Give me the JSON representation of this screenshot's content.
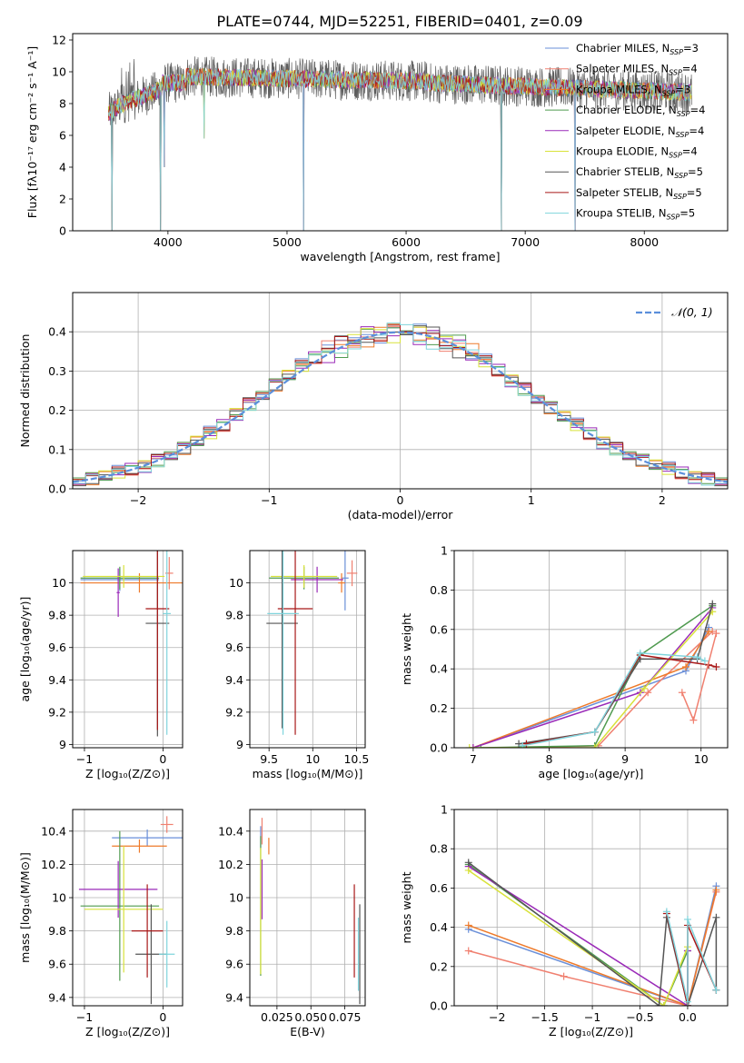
{
  "figure_title": "PLATE=0744, MJD=52251, FIBERID=0401, z=0.09",
  "colors": {
    "Chabrier MILES": "#6a8fd8",
    "Salpeter MILES": "#f08070",
    "Kroupa MILES": "#ee7a2a",
    "Chabrier ELODIE": "#4f9a4f",
    "Salpeter ELODIE": "#9a2ab8",
    "Kroupa ELODIE": "#d8e23a",
    "Chabrier STELIB": "#555555",
    "Salpeter STELIB": "#a81818",
    "Kroupa STELIB": "#7fd4dc",
    "gaussian": "#5b8fdb"
  },
  "legend_entries": [
    {
      "model": "Chabrier MILES",
      "n": "3"
    },
    {
      "model": "Salpeter MILES",
      "n": "4"
    },
    {
      "model": "Kroupa MILES",
      "n": "3"
    },
    {
      "model": "Chabrier ELODIE",
      "n": "4"
    },
    {
      "model": "Salpeter ELODIE",
      "n": "4"
    },
    {
      "model": "Kroupa ELODIE",
      "n": "4"
    },
    {
      "model": "Chabrier STELIB",
      "n": "5"
    },
    {
      "model": "Salpeter STELIB",
      "n": "5"
    },
    {
      "model": "Kroupa STELIB",
      "n": "5"
    }
  ],
  "chart_data": [
    {
      "id": "spectrum",
      "type": "line",
      "xlabel": "wavelength [Angstrom, rest frame]",
      "ylabel": "Flux [fλ10⁻¹⁷ erg cm⁻² s⁻¹ A⁻¹]",
      "xlim": [
        3200,
        8700
      ],
      "ylim": [
        0,
        12.4
      ],
      "xticks": [
        4000,
        5000,
        6000,
        7000,
        8000
      ],
      "yticks": [
        0,
        2,
        4,
        6,
        8,
        10,
        12
      ],
      "grid": false,
      "legend_position": "right",
      "data_range": [
        3500,
        8400
      ],
      "absorption_dips": [
        {
          "x": 3530,
          "y": 0
        },
        {
          "x": 3935,
          "y": 0
        },
        {
          "x": 3970,
          "y": 4
        },
        {
          "x": 4305,
          "y": 5.8
        },
        {
          "x": 5140,
          "y": 0
        },
        {
          "x": 6800,
          "y": 0
        },
        {
          "x": 7420,
          "y": 0
        }
      ]
    },
    {
      "id": "residuals",
      "type": "line",
      "xlabel": "(data-model)/error",
      "ylabel": "Normed distribution",
      "xlim": [
        -2.5,
        2.5
      ],
      "ylim": [
        0,
        0.5
      ],
      "xticks": [
        -2,
        -1,
        0,
        1,
        2
      ],
      "yticks": [
        0.0,
        0.1,
        0.2,
        0.3,
        0.4
      ],
      "grid": true,
      "legend_position": "top-right",
      "gaussian_label": "𝒩(0, 1)",
      "bin_width": 0.1,
      "series": [
        {
          "name": "Chabrier MILES",
          "offsets": [
            0,
            0.012,
            -0.008,
            0.02,
            -0.012,
            0.01,
            0.004
          ]
        },
        {
          "name": "Salpeter MILES",
          "offsets": [
            0.006,
            -0.01,
            0.015,
            -0.006,
            0.008,
            -0.014,
            0.01
          ]
        },
        {
          "name": "Kroupa MILES",
          "offsets": [
            -0.008,
            0.01,
            0.004,
            -0.015,
            0.012,
            0.006,
            -0.01
          ]
        },
        {
          "name": "Chabrier ELODIE",
          "offsets": [
            0.01,
            -0.004,
            -0.012,
            0.008,
            0.016,
            -0.01,
            0.002
          ]
        },
        {
          "name": "Salpeter ELODIE",
          "offsets": [
            -0.004,
            0.016,
            -0.018,
            0.01,
            -0.008,
            0.012,
            -0.006
          ]
        },
        {
          "name": "Kroupa ELODIE",
          "offsets": [
            0.014,
            -0.012,
            0.008,
            0.012,
            -0.016,
            0.004,
            0.01
          ]
        },
        {
          "name": "Chabrier STELIB",
          "offsets": [
            -0.012,
            0.004,
            0.012,
            -0.01,
            0.006,
            0.016,
            -0.012
          ]
        },
        {
          "name": "Salpeter STELIB",
          "offsets": [
            0.004,
            0.008,
            -0.006,
            0.016,
            -0.012,
            -0.008,
            0.014
          ]
        },
        {
          "name": "Kroupa STELIB",
          "offsets": [
            -0.016,
            -0.006,
            0.01,
            -0.004,
            0.01,
            0.008,
            -0.016
          ]
        }
      ]
    },
    {
      "id": "age-vs-Z",
      "type": "scatter",
      "xlabel": "Z [log₁₀(Z/Z⊙)]",
      "ylabel": "age  [log₁₀(age/yr)]",
      "xlim": [
        -1.15,
        0.25
      ],
      "ylim": [
        8.98,
        10.2
      ],
      "xticks": [
        -1,
        0
      ],
      "yticks": [
        9.0,
        9.2,
        9.4,
        9.6,
        9.8,
        10.0
      ],
      "grid": true,
      "points": [
        {
          "s": "Chabrier MILES",
          "x": -0.55,
          "y": 10.02,
          "xerr": 0.5,
          "yerr": 0.07
        },
        {
          "s": "Salpeter MILES",
          "x": 0.08,
          "y": 10.06,
          "xerr": 0.05,
          "yerr": 0.1
        },
        {
          "s": "Kroupa MILES",
          "x": -0.3,
          "y": 10.0,
          "xerr": 0.75,
          "yerr": 0.06
        },
        {
          "s": "Chabrier ELODIE",
          "x": -0.55,
          "y": 10.03,
          "xerr": 0.5,
          "yerr": 0.07
        },
        {
          "s": "Salpeter ELODIE",
          "x": -0.57,
          "y": 9.94,
          "xerr": 0.02,
          "yerr": 0.15
        },
        {
          "s": "Kroupa ELODIE",
          "x": -0.5,
          "y": 10.04,
          "xerr": 0.52,
          "yerr": 0.07
        },
        {
          "s": "Chabrier STELIB",
          "x": -0.07,
          "y": 9.75,
          "xerr": 0.15,
          "yerr": 0.7
        },
        {
          "s": "Salpeter STELIB",
          "x": -0.07,
          "y": 9.84,
          "xerr": 0.15,
          "yerr": 0.75
        },
        {
          "s": "Kroupa STELIB",
          "x": 0.05,
          "y": 9.81,
          "xerr": 0.05,
          "yerr": 0.75
        }
      ]
    },
    {
      "id": "age-vs-mass",
      "type": "scatter",
      "xlabel": "mass [log₁₀(M/M⊙)]",
      "ylabel": "",
      "xlim": [
        9.28,
        10.6
      ],
      "ylim": [
        8.98,
        10.2
      ],
      "xticks": [
        9.5,
        10.0,
        10.5
      ],
      "yticks": [
        9.0,
        9.2,
        9.4,
        9.6,
        9.8,
        10.0
      ],
      "grid": true,
      "points": [
        {
          "s": "Chabrier MILES",
          "x": 10.37,
          "y": 10.03,
          "xerr": 0.04,
          "yerr": 0.2
        },
        {
          "s": "Salpeter MILES",
          "x": 10.45,
          "y": 10.06,
          "xerr": 0.06,
          "yerr": 0.08
        },
        {
          "s": "Kroupa MILES",
          "x": 10.33,
          "y": 10.0,
          "xerr": 0.04,
          "yerr": 0.06
        },
        {
          "s": "Chabrier ELODIE",
          "x": 9.9,
          "y": 10.03,
          "xerr": 0.4,
          "yerr": 0.07
        },
        {
          "s": "Salpeter ELODIE",
          "x": 10.05,
          "y": 10.02,
          "xerr": 0.3,
          "yerr": 0.08
        },
        {
          "s": "Kroupa ELODIE",
          "x": 9.9,
          "y": 10.04,
          "xerr": 0.38,
          "yerr": 0.07
        },
        {
          "s": "Chabrier STELIB",
          "x": 9.65,
          "y": 9.75,
          "xerr": 0.18,
          "yerr": 0.65
        },
        {
          "s": "Salpeter STELIB",
          "x": 9.8,
          "y": 9.84,
          "xerr": 0.2,
          "yerr": 0.78
        },
        {
          "s": "Kroupa STELIB",
          "x": 9.66,
          "y": 9.81,
          "xerr": 0.18,
          "yerr": 0.75
        }
      ]
    },
    {
      "id": "massweight-vs-age",
      "type": "line",
      "xlabel": "age  [log₁₀(age/yr)]",
      "ylabel": "mass weight",
      "xlim": [
        6.75,
        10.35
      ],
      "ylim": [
        0,
        1.0
      ],
      "xticks": [
        7,
        8,
        9,
        10
      ],
      "yticks": [
        0.0,
        0.2,
        0.4,
        0.6,
        0.8,
        1.0
      ],
      "grid": true,
      "series": [
        {
          "name": "Chabrier MILES",
          "points": [
            [
              7.0,
              0.0
            ],
            [
              9.8,
              0.39
            ],
            [
              10.1,
              0.61
            ]
          ]
        },
        {
          "name": "Salpeter MILES",
          "points": [
            [
              7.7,
              0.0
            ],
            [
              8.65,
              0.01
            ],
            [
              9.3,
              0.28
            ],
            [
              10.15,
              0.59
            ]
          ]
        },
        {
          "name": "Kroupa MILES",
          "points": [
            [
              7.0,
              0.0
            ],
            [
              9.8,
              0.41
            ],
            [
              10.1,
              0.59
            ]
          ]
        },
        {
          "name": "Chabrier ELODIE",
          "points": [
            [
              7.1,
              0.0
            ],
            [
              8.6,
              0.01
            ],
            [
              9.2,
              0.47
            ],
            [
              10.15,
              0.72
            ]
          ]
        },
        {
          "name": "Salpeter ELODIE",
          "points": [
            [
              7.0,
              0.0
            ],
            [
              9.2,
              0.28
            ],
            [
              10.15,
              0.71
            ]
          ]
        },
        {
          "name": "Kroupa ELODIE",
          "points": [
            [
              6.95,
              0.0
            ],
            [
              8.6,
              0.0
            ],
            [
              9.25,
              0.3
            ],
            [
              10.15,
              0.69
            ]
          ]
        },
        {
          "name": "Chabrier STELIB",
          "points": [
            [
              7.6,
              0.02
            ],
            [
              8.6,
              0.08
            ],
            [
              9.2,
              0.45
            ],
            [
              9.95,
              0.45
            ],
            [
              10.15,
              0.73
            ]
          ]
        },
        {
          "name": "Salpeter STELIB",
          "points": [
            [
              7.7,
              0.02
            ],
            [
              8.6,
              0.08
            ],
            [
              9.2,
              0.47
            ],
            [
              10.1,
              0.42
            ],
            [
              10.2,
              0.41
            ]
          ]
        },
        {
          "name": "Kroupa STELIB",
          "points": [
            [
              7.65,
              0.01
            ],
            [
              8.6,
              0.08
            ],
            [
              9.2,
              0.48
            ],
            [
              9.95,
              0.46
            ],
            [
              10.05,
              0.44
            ]
          ]
        },
        {
          "name": "Salpeter MILES ",
          "points": [
            [
              9.75,
              0.28
            ],
            [
              9.9,
              0.14
            ],
            [
              10.2,
              0.58
            ]
          ]
        }
      ]
    },
    {
      "id": "mass-vs-Z",
      "type": "scatter",
      "xlabel": "Z [log₁₀(Z/Z⊙)]",
      "ylabel": "mass [log₁₀(M/M⊙)]",
      "xlim": [
        -1.15,
        0.25
      ],
      "ylim": [
        9.35,
        10.53
      ],
      "xticks": [
        -1,
        0
      ],
      "yticks": [
        9.4,
        9.6,
        9.8,
        10.0,
        10.2,
        10.4
      ],
      "grid": true,
      "points": [
        {
          "s": "Chabrier MILES",
          "x": -0.2,
          "y": 10.36,
          "xerr": 0.45,
          "yerr": 0.05
        },
        {
          "s": "Salpeter MILES",
          "x": 0.05,
          "y": 10.44,
          "xerr": 0.08,
          "yerr": 0.05
        },
        {
          "s": "Kroupa MILES",
          "x": -0.3,
          "y": 10.31,
          "xerr": 0.35,
          "yerr": 0.04
        },
        {
          "s": "Chabrier ELODIE",
          "x": -0.55,
          "y": 9.95,
          "xerr": 0.5,
          "yerr": 0.45
        },
        {
          "s": "Salpeter ELODIE",
          "x": -0.57,
          "y": 10.05,
          "xerr": 0.5,
          "yerr": 0.17
        },
        {
          "s": "Kroupa ELODIE",
          "x": -0.5,
          "y": 9.93,
          "xerr": 0.5,
          "yerr": 0.38
        },
        {
          "s": "Chabrier STELIB",
          "x": -0.15,
          "y": 9.66,
          "xerr": 0.2,
          "yerr": 0.3
        },
        {
          "s": "Salpeter STELIB",
          "x": -0.2,
          "y": 9.8,
          "xerr": 0.2,
          "yerr": 0.28
        },
        {
          "s": "Kroupa STELIB",
          "x": 0.05,
          "y": 9.66,
          "xerr": 0.1,
          "yerr": 0.2
        }
      ]
    },
    {
      "id": "mass-vs-EBV",
      "type": "scatter",
      "xlabel": "E(B-V)",
      "ylabel": "",
      "xlim": [
        0.005,
        0.09
      ],
      "ylim": [
        9.35,
        10.53
      ],
      "xticks": [
        0.025,
        0.05,
        0.075
      ],
      "xticklabels": [
        "0.025",
        "0.050",
        "0.075"
      ],
      "yticks": [
        9.4,
        9.6,
        9.8,
        10.0,
        10.2,
        10.4
      ],
      "grid": true,
      "points": [
        {
          "s": "Chabrier MILES",
          "x": 0.013,
          "y": 10.36,
          "yerr": 0.07
        },
        {
          "s": "Salpeter MILES",
          "x": 0.014,
          "y": 10.4,
          "yerr": 0.08
        },
        {
          "s": "Kroupa MILES",
          "x": 0.019,
          "y": 10.31,
          "yerr": 0.05
        },
        {
          "s": "Chabrier ELODIE",
          "x": 0.013,
          "y": 9.95,
          "yerr": 0.42
        },
        {
          "s": "Salpeter ELODIE",
          "x": 0.014,
          "y": 10.05,
          "yerr": 0.18
        },
        {
          "s": "Kroupa ELODIE",
          "x": 0.013,
          "y": 9.92,
          "yerr": 0.38
        },
        {
          "s": "Chabrier STELIB",
          "x": 0.086,
          "y": 9.66,
          "yerr": 0.3
        },
        {
          "s": "Salpeter STELIB",
          "x": 0.082,
          "y": 9.8,
          "yerr": 0.28
        },
        {
          "s": "Kroupa STELIB",
          "x": 0.085,
          "y": 9.66,
          "yerr": 0.22
        }
      ]
    },
    {
      "id": "massweight-vs-Z",
      "type": "line",
      "xlabel": "Z [log₁₀(Z/Z⊙)]",
      "ylabel": "mass weight",
      "xlim": [
        -2.45,
        0.42
      ],
      "ylim": [
        0,
        1.0
      ],
      "xticks": [
        -2.0,
        -1.5,
        -1.0,
        -0.5,
        0.0
      ],
      "yticks": [
        0.0,
        0.2,
        0.4,
        0.6,
        0.8,
        1.0
      ],
      "grid": true,
      "series": [
        {
          "name": "Chabrier MILES",
          "points": [
            [
              -2.3,
              0.39
            ],
            [
              0.0,
              0.0
            ],
            [
              0.3,
              0.61
            ]
          ]
        },
        {
          "name": "Salpeter MILES",
          "points": [
            [
              -2.3,
              0.28
            ],
            [
              -1.3,
              0.15
            ],
            [
              0.0,
              0.0
            ],
            [
              0.3,
              0.58
            ]
          ]
        },
        {
          "name": "Kroupa MILES",
          "points": [
            [
              -2.3,
              0.41
            ],
            [
              0.0,
              0.0
            ],
            [
              0.3,
              0.59
            ]
          ]
        },
        {
          "name": "Chabrier ELODIE",
          "points": [
            [
              -2.3,
              0.72
            ],
            [
              -0.25,
              0.0
            ],
            [
              0.0,
              0.28
            ]
          ]
        },
        {
          "name": "Salpeter ELODIE",
          "points": [
            [
              -2.3,
              0.71
            ],
            [
              0.0,
              0.0
            ],
            [
              0.0,
              0.28
            ]
          ]
        },
        {
          "name": "Kroupa ELODIE",
          "points": [
            [
              -2.3,
              0.69
            ],
            [
              -0.25,
              0.0
            ],
            [
              0.0,
              0.3
            ]
          ]
        },
        {
          "name": "Chabrier STELIB",
          "points": [
            [
              -2.3,
              0.73
            ],
            [
              -0.3,
              0.0
            ],
            [
              -0.22,
              0.45
            ],
            [
              0.0,
              0.0
            ],
            [
              0.3,
              0.45
            ],
            [
              0.3,
              0.08
            ]
          ]
        },
        {
          "name": "Salpeter STELIB",
          "points": [
            [
              -0.22,
              0.47
            ],
            [
              0.0,
              0.0
            ],
            [
              0.0,
              0.41
            ],
            [
              0.3,
              0.08
            ]
          ]
        },
        {
          "name": "Kroupa STELIB",
          "points": [
            [
              -0.22,
              0.48
            ],
            [
              0.0,
              0.02
            ],
            [
              0.0,
              0.44
            ],
            [
              0.3,
              0.08
            ]
          ]
        }
      ]
    }
  ]
}
